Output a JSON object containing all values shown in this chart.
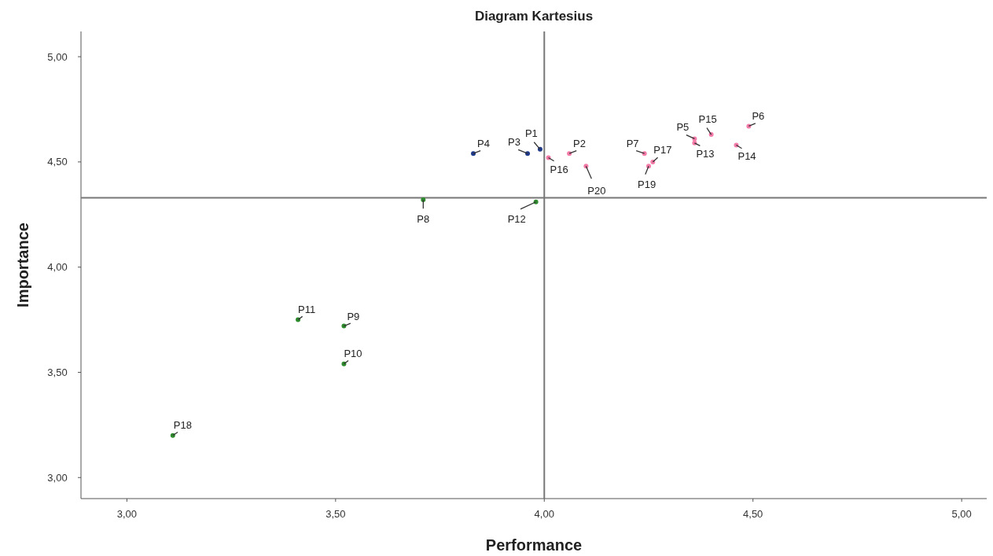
{
  "chart_data": {
    "type": "scatter",
    "title": "Diagram Kartesius",
    "xlabel": "Performance",
    "ylabel": "Importance",
    "xlim": [
      2.89,
      5.06
    ],
    "ylim": [
      2.9,
      5.12
    ],
    "xticks": [
      {
        "value": 3,
        "label": "3,00"
      },
      {
        "value": 3.5,
        "label": "3,50"
      },
      {
        "value": 4,
        "label": "4,00"
      },
      {
        "value": 4.5,
        "label": "4,50"
      },
      {
        "value": 5,
        "label": "5,00"
      }
    ],
    "yticks": [
      {
        "value": 3,
        "label": "3,00"
      },
      {
        "value": 3.5,
        "label": "3,50"
      },
      {
        "value": 4,
        "label": "4,00"
      },
      {
        "value": 4.5,
        "label": "4,50"
      },
      {
        "value": 5,
        "label": "5,00"
      }
    ],
    "grid": false,
    "marker": "circle",
    "series": [
      {
        "color": "#1f3a8a",
        "x": [
          3.99,
          3.96,
          3.83
        ],
        "values": [
          4.56,
          4.54,
          4.54
        ]
      },
      {
        "color": "#2e8b2e",
        "x": [
          3.71,
          3.52,
          3.52,
          3.41,
          3.98,
          3.11
        ],
        "values": [
          4.32,
          3.72,
          3.54,
          3.75,
          4.31,
          3.2
        ]
      },
      {
        "color": "#f47aa8",
        "x": [
          4.06,
          4.36,
          4.49,
          4.24,
          4.36,
          4.46,
          4.4,
          4.01,
          4.26,
          4.25,
          4.1
        ],
        "values": [
          4.54,
          4.61,
          4.67,
          4.54,
          4.59,
          4.58,
          4.63,
          4.52,
          4.5,
          4.48,
          4.48
        ]
      }
    ],
    "ref_lines": [
      {
        "axis": "x",
        "value": 4.0,
        "color": "#777777"
      },
      {
        "axis": "y",
        "value": 4.33,
        "color": "#777777"
      }
    ],
    "annotations": [
      {
        "text": "P1",
        "x": 3.99,
        "y": 4.56
      },
      {
        "text": "P2",
        "x": 4.06,
        "y": 4.54
      },
      {
        "text": "P3",
        "x": 3.96,
        "y": 4.54
      },
      {
        "text": "P4",
        "x": 3.83,
        "y": 4.54
      },
      {
        "text": "P5",
        "x": 4.36,
        "y": 4.61
      },
      {
        "text": "P6",
        "x": 4.49,
        "y": 4.67
      },
      {
        "text": "P7",
        "x": 4.24,
        "y": 4.54
      },
      {
        "text": "P8",
        "x": 3.71,
        "y": 4.32
      },
      {
        "text": "P9",
        "x": 3.52,
        "y": 3.72
      },
      {
        "text": "P10",
        "x": 3.52,
        "y": 3.54
      },
      {
        "text": "P11",
        "x": 3.41,
        "y": 3.75
      },
      {
        "text": "P12",
        "x": 3.98,
        "y": 4.31
      },
      {
        "text": "P13",
        "x": 4.36,
        "y": 4.59
      },
      {
        "text": "P14",
        "x": 4.46,
        "y": 4.58
      },
      {
        "text": "P15",
        "x": 4.4,
        "y": 4.63
      },
      {
        "text": "P16",
        "x": 4.01,
        "y": 4.52
      },
      {
        "text": "P17",
        "x": 4.26,
        "y": 4.5
      },
      {
        "text": "P18",
        "x": 3.11,
        "y": 3.2
      },
      {
        "text": "P19",
        "x": 4.25,
        "y": 4.48
      },
      {
        "text": "P20",
        "x": 4.1,
        "y": 4.48
      }
    ]
  }
}
